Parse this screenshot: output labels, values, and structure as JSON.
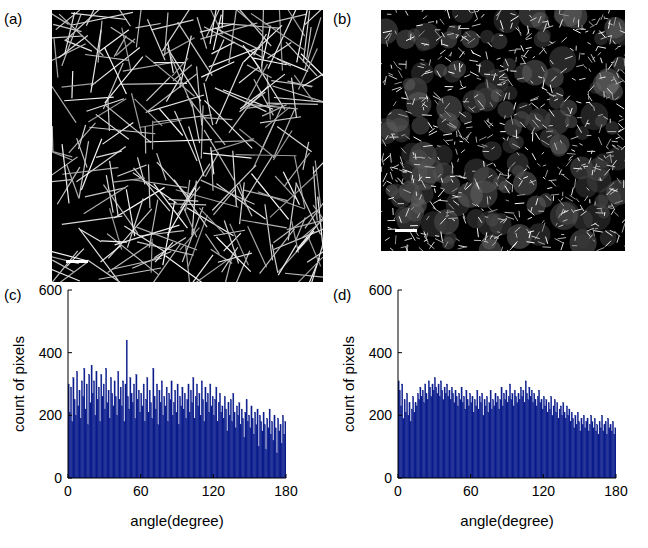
{
  "images": [
    {
      "label": "(a)"
    },
    {
      "label": "(b)"
    }
  ],
  "chart_data": [
    {
      "type": "histogram",
      "panel_label": "(c)",
      "x_label": "angle(degree)",
      "y_label": "count of pixels",
      "color": "#0b1d8c",
      "xlim": [
        0,
        180
      ],
      "xticks": [
        0,
        60,
        120,
        180
      ],
      "ylim": [
        0,
        600
      ],
      "yticks": [
        0,
        200,
        400,
        600
      ],
      "bins": [
        0,
        1,
        2,
        3,
        4,
        5,
        6,
        7,
        8,
        9,
        10,
        11,
        12,
        13,
        14,
        15,
        16,
        17,
        18,
        19,
        20,
        21,
        22,
        23,
        24,
        25,
        26,
        27,
        28,
        29,
        30,
        31,
        32,
        33,
        34,
        35,
        36,
        37,
        38,
        39,
        40,
        41,
        42,
        43,
        44,
        45,
        46,
        47,
        48,
        49,
        50,
        51,
        52,
        53,
        54,
        55,
        56,
        57,
        58,
        59,
        60,
        61,
        62,
        63,
        64,
        65,
        66,
        67,
        68,
        69,
        70,
        71,
        72,
        73,
        74,
        75,
        76,
        77,
        78,
        79,
        80,
        81,
        82,
        83,
        84,
        85,
        86,
        87,
        88,
        89,
        90,
        91,
        92,
        93,
        94,
        95,
        96,
        97,
        98,
        99,
        100,
        101,
        102,
        103,
        104,
        105,
        106,
        107,
        108,
        109,
        110,
        111,
        112,
        113,
        114,
        115,
        116,
        117,
        118,
        119,
        120,
        121,
        122,
        123,
        124,
        125,
        126,
        127,
        128,
        129,
        130,
        131,
        132,
        133,
        134,
        135,
        136,
        137,
        138,
        139,
        140,
        141,
        142,
        143,
        144,
        145,
        146,
        147,
        148,
        149,
        150,
        151,
        152,
        153,
        154,
        155,
        156,
        157,
        158,
        159,
        160,
        161,
        162,
        163,
        164,
        165,
        166,
        167,
        168,
        169,
        170,
        171,
        172,
        173,
        174,
        175,
        176,
        177,
        178,
        179,
        180
      ],
      "values": [
        300,
        210,
        290,
        180,
        320,
        250,
        200,
        340,
        230,
        280,
        190,
        310,
        260,
        350,
        220,
        300,
        170,
        330,
        240,
        360,
        270,
        310,
        200,
        340,
        250,
        290,
        180,
        330,
        260,
        300,
        220,
        350,
        240,
        280,
        190,
        320,
        270,
        230,
        310,
        260,
        200,
        340,
        250,
        290,
        230,
        310,
        180,
        300,
        440,
        260,
        220,
        320,
        270,
        240,
        300,
        190,
        330,
        250,
        280,
        210,
        270,
        230,
        300,
        180,
        250,
        320,
        210,
        280,
        240,
        190,
        350,
        260,
        220,
        300,
        170,
        280,
        240,
        310,
        200,
        260,
        230,
        290,
        180,
        270,
        250,
        310,
        200,
        240,
        280,
        210,
        300,
        170,
        260,
        230,
        290,
        220,
        270,
        190,
        250,
        300,
        210,
        280,
        240,
        320,
        190,
        260,
        300,
        230,
        270,
        200,
        310,
        250,
        180,
        290,
        240,
        270,
        210,
        300,
        230,
        260,
        200,
        250,
        290,
        180,
        240,
        270,
        210,
        230,
        190,
        260,
        220,
        150,
        240,
        200,
        250,
        180,
        270,
        210,
        160,
        230,
        200,
        240,
        170,
        220,
        190,
        130,
        210,
        250,
        180,
        200,
        160,
        230,
        190,
        140,
        210,
        170,
        220,
        100,
        200,
        180,
        150,
        210,
        170,
        90,
        190,
        160,
        220,
        140,
        180,
        120,
        200,
        160,
        80,
        190,
        150,
        170,
        110,
        200,
        140,
        180
      ]
    },
    {
      "type": "histogram",
      "panel_label": "(d)",
      "x_label": "angle(degree)",
      "y_label": "count of pixels",
      "color": "#0b1d8c",
      "xlim": [
        0,
        180
      ],
      "xticks": [
        0,
        60,
        120,
        180
      ],
      "ylim": [
        0,
        600
      ],
      "yticks": [
        0,
        200,
        400,
        600
      ],
      "bins": [
        0,
        1,
        2,
        3,
        4,
        5,
        6,
        7,
        8,
        9,
        10,
        11,
        12,
        13,
        14,
        15,
        16,
        17,
        18,
        19,
        20,
        21,
        22,
        23,
        24,
        25,
        26,
        27,
        28,
        29,
        30,
        31,
        32,
        33,
        34,
        35,
        36,
        37,
        38,
        39,
        40,
        41,
        42,
        43,
        44,
        45,
        46,
        47,
        48,
        49,
        50,
        51,
        52,
        53,
        54,
        55,
        56,
        57,
        58,
        59,
        60,
        61,
        62,
        63,
        64,
        65,
        66,
        67,
        68,
        69,
        70,
        71,
        72,
        73,
        74,
        75,
        76,
        77,
        78,
        79,
        80,
        81,
        82,
        83,
        84,
        85,
        86,
        87,
        88,
        89,
        90,
        91,
        92,
        93,
        94,
        95,
        96,
        97,
        98,
        99,
        100,
        101,
        102,
        103,
        104,
        105,
        106,
        107,
        108,
        109,
        110,
        111,
        112,
        113,
        114,
        115,
        116,
        117,
        118,
        119,
        120,
        121,
        122,
        123,
        124,
        125,
        126,
        127,
        128,
        129,
        130,
        131,
        132,
        133,
        134,
        135,
        136,
        137,
        138,
        139,
        140,
        141,
        142,
        143,
        144,
        145,
        146,
        147,
        148,
        149,
        150,
        151,
        152,
        153,
        154,
        155,
        156,
        157,
        158,
        159,
        160,
        161,
        162,
        163,
        164,
        165,
        166,
        167,
        168,
        169,
        170,
        171,
        172,
        173,
        174,
        175,
        176,
        177,
        178,
        179,
        180
      ],
      "values": [
        310,
        280,
        230,
        300,
        190,
        250,
        210,
        270,
        200,
        240,
        180,
        220,
        260,
        210,
        240,
        230,
        270,
        250,
        290,
        260,
        280,
        240,
        300,
        270,
        250,
        310,
        290,
        260,
        300,
        280,
        320,
        290,
        270,
        300,
        260,
        310,
        280,
        250,
        290,
        270,
        300,
        260,
        280,
        250,
        290,
        270,
        240,
        280,
        260,
        230,
        270,
        250,
        290,
        240,
        260,
        220,
        280,
        250,
        230,
        270,
        240,
        260,
        210,
        250,
        230,
        280,
        220,
        260,
        240,
        270,
        200,
        250,
        230,
        260,
        210,
        240,
        280,
        220,
        250,
        230,
        270,
        240,
        260,
        220,
        250,
        290,
        230,
        270,
        250,
        280,
        240,
        260,
        300,
        250,
        270,
        230,
        280,
        260,
        240,
        270,
        250,
        290,
        260,
        280,
        240,
        310,
        270,
        250,
        290,
        260,
        280,
        240,
        270,
        250,
        230,
        260,
        280,
        240,
        250,
        220,
        260,
        230,
        250,
        210,
        240,
        220,
        260,
        200,
        230,
        250,
        210,
        240,
        190,
        220,
        230,
        200,
        240,
        210,
        190,
        230,
        200,
        220,
        180,
        210,
        190,
        160,
        200,
        170,
        210,
        180,
        150,
        190,
        170,
        200,
        160,
        180,
        190,
        150,
        170,
        200,
        180,
        160,
        190,
        150,
        170,
        140,
        180,
        160,
        200,
        150,
        170,
        180,
        140,
        190,
        160,
        170,
        150,
        180,
        140,
        160
      ]
    }
  ]
}
